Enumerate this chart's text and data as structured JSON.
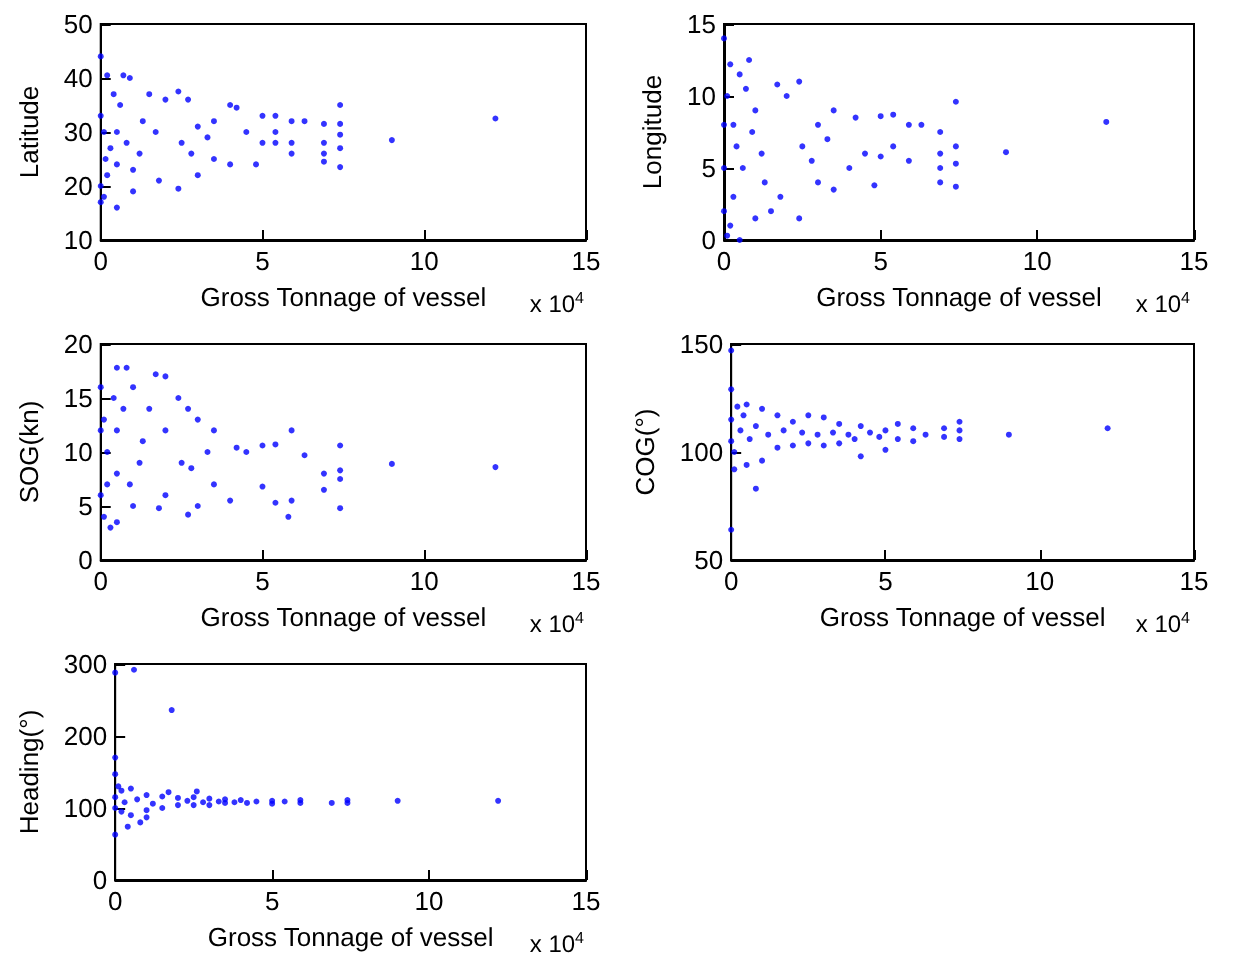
{
  "chart_data": [
    {
      "type": "scatter",
      "xlabel": "Gross Tonnage of vessel",
      "ylabel": "Latitude",
      "annotations": [
        "x 10$^{4}$"
      ],
      "color": "#0000ff",
      "marker": "circle",
      "xlim": [
        0,
        15
      ],
      "xticks": [
        0,
        5,
        10,
        15
      ],
      "ylim": [
        10,
        50
      ],
      "yticks": [
        10,
        20,
        30,
        40,
        50
      ],
      "x": [
        0,
        0.5,
        12.2,
        9,
        7.4,
        7.4,
        7.4,
        7.4,
        7.4,
        6.9,
        6.9,
        6.9,
        6.9,
        5.9,
        5.9,
        5.9,
        5.4,
        5.4,
        5.4,
        5,
        5,
        4.8,
        6.3,
        0,
        0.2,
        0.7,
        0.9,
        0,
        0,
        0.1,
        1,
        1.5,
        2,
        2.4,
        2.4,
        2.7,
        3,
        3,
        3.5,
        3.5,
        4,
        4,
        4.2,
        4.5,
        1.8,
        0.5,
        0.5,
        0.3,
        0.8,
        1.2,
        1.3,
        0.6,
        0.2,
        2.5,
        2.8,
        3.3,
        1.7,
        0.4,
        1,
        0.1,
        0.15
      ],
      "values": [
        44,
        16,
        32.5,
        28.5,
        35,
        23.5,
        27,
        29.5,
        31.5,
        24.5,
        26,
        28,
        31.5,
        32,
        28,
        26,
        33,
        30,
        28,
        33,
        28,
        24,
        32,
        17,
        40.5,
        40.5,
        40,
        33,
        20,
        18,
        19,
        37,
        36,
        37.5,
        19.5,
        36,
        31,
        22,
        32,
        25,
        35,
        24,
        34.5,
        30,
        21,
        24,
        30,
        27,
        28,
        26,
        32,
        35,
        22,
        28,
        26,
        29,
        30,
        37,
        23,
        30,
        25
      ]
    },
    {
      "type": "scatter",
      "xlabel": "Gross Tonnage of vessel",
      "ylabel": "Longitude",
      "annotations": [
        "x 10$^{4}$"
      ],
      "color": "#0000ff",
      "marker": "circle",
      "xlim": [
        0,
        15
      ],
      "xticks": [
        0,
        5,
        10,
        15
      ],
      "ylim": [
        0,
        15
      ],
      "yticks": [
        0,
        5,
        10,
        15
      ],
      "x": [
        0,
        0.2,
        0.8,
        0.5,
        0.1,
        12.2,
        9,
        7.4,
        7.4,
        7.4,
        7.4,
        6.9,
        6.9,
        6.9,
        6.9,
        5.9,
        5.9,
        5.4,
        5.4,
        5,
        5,
        4.8,
        6.3,
        4.5,
        4.2,
        4,
        3.5,
        3.5,
        3,
        3,
        2.4,
        2.4,
        2.5,
        2,
        1.7,
        1.5,
        1,
        1,
        0.7,
        0.3,
        0.3,
        0.6,
        0.4,
        0.2,
        0,
        0,
        0,
        1.2,
        1.3,
        2.8,
        3.3,
        0.9,
        0.1,
        0.5,
        1.8
      ],
      "values": [
        14,
        12.2,
        12.5,
        0,
        0.3,
        8.2,
        6.1,
        9.6,
        3.7,
        6.5,
        5.3,
        4,
        5,
        7.5,
        6,
        8,
        5.5,
        8.7,
        6.5,
        8.6,
        5.8,
        3.8,
        8,
        6,
        8.5,
        5,
        9,
        3.5,
        8,
        4,
        11,
        1.5,
        6.5,
        10,
        10.8,
        2,
        1.5,
        9,
        10.5,
        3,
        8,
        5,
        6.5,
        1,
        2,
        5,
        8,
        6,
        4,
        5.5,
        7,
        7.5,
        10,
        11.5,
        3
      ]
    },
    {
      "type": "scatter",
      "xlabel": "Gross Tonnage of vessel",
      "ylabel": "SOG(kn)",
      "annotations": [
        "x 10$^{4}$"
      ],
      "color": "#0000ff",
      "marker": "circle",
      "xlim": [
        0,
        15
      ],
      "xticks": [
        0,
        5,
        10,
        15
      ],
      "ylim": [
        0,
        20
      ],
      "yticks": [
        0,
        5,
        10,
        15,
        20
      ],
      "x": [
        0,
        0.3,
        0.5,
        0.8,
        1.7,
        2,
        2.4,
        0.1,
        0.5,
        12.2,
        9,
        7.4,
        7.4,
        7.4,
        7.4,
        6.9,
        6.9,
        6.3,
        5.9,
        5.9,
        5.8,
        5.4,
        5.4,
        5,
        5,
        4.5,
        4.2,
        4,
        3.5,
        3.5,
        3,
        3,
        2.7,
        2.7,
        2,
        2,
        1.8,
        1.5,
        1,
        1,
        0.5,
        0.5,
        0.7,
        0.2,
        0,
        0,
        1.2,
        1.3,
        2.5,
        3.3,
        2.8,
        0.9,
        0.4,
        0.1,
        0.2
      ],
      "values": [
        16,
        3,
        17.8,
        17.8,
        17.2,
        17,
        15,
        4,
        3.5,
        8.6,
        8.9,
        10.6,
        4.8,
        7.5,
        8.3,
        6.5,
        8,
        9.7,
        12,
        5.5,
        4,
        10.7,
        5.3,
        10.6,
        6.8,
        10,
        10.4,
        5.5,
        12,
        7,
        13,
        5,
        14,
        4.2,
        12,
        6,
        4.8,
        14,
        16,
        5,
        8,
        12,
        14,
        10,
        6,
        12,
        9,
        11,
        9,
        10,
        8.5,
        7,
        15,
        13,
        7
      ]
    },
    {
      "type": "scatter",
      "xlabel": "Gross Tonnage of vessel",
      "ylabel": "COG(°)",
      "annotations": [
        "x 10$^{4}$"
      ],
      "color": "#0000ff",
      "marker": "circle",
      "xlim": [
        0,
        15
      ],
      "xticks": [
        0,
        5,
        10,
        15
      ],
      "ylim": [
        50,
        150
      ],
      "yticks": [
        50,
        100,
        150
      ],
      "x": [
        0,
        0,
        0,
        0.8,
        0.1,
        12.2,
        9,
        7.4,
        7.4,
        7.4,
        6.9,
        6.9,
        6.3,
        5.9,
        5.9,
        5.4,
        5.4,
        5,
        5,
        4.8,
        4.5,
        4.2,
        4.2,
        4,
        3.5,
        3.5,
        3,
        3,
        2.5,
        2.5,
        2,
        2,
        1.5,
        1.5,
        1,
        1,
        0.5,
        0.5,
        0.2,
        0.3,
        0.6,
        0.8,
        1.2,
        1.7,
        2.3,
        2.8,
        3.3,
        3.8,
        0,
        0,
        0.1,
        0.4
      ],
      "values": [
        147,
        129,
        64,
        83,
        92,
        111,
        108,
        114,
        106,
        110,
        111,
        107,
        108,
        111,
        105,
        113,
        106,
        110,
        101,
        107,
        109,
        112,
        98,
        106,
        113,
        104,
        116,
        103,
        117,
        104,
        114,
        103,
        117,
        102,
        120,
        96,
        122,
        94,
        121,
        110,
        106,
        112,
        108,
        110,
        109,
        108,
        109,
        108,
        105,
        115,
        100,
        117
      ]
    },
    {
      "type": "scatter",
      "xlabel": "Gross Tonnage of vessel",
      "ylabel": "Heading(°)",
      "annotations": [
        "x 10$^{4}$"
      ],
      "color": "#0000ff",
      "marker": "circle",
      "xlim": [
        0,
        15
      ],
      "xticks": [
        0,
        5,
        10,
        15
      ],
      "ylim": [
        0,
        300
      ],
      "yticks": [
        0,
        100,
        200,
        300
      ],
      "x": [
        0,
        0.6,
        1.8,
        0,
        0,
        0,
        0.4,
        0.8,
        1,
        1.7,
        2.6,
        12.2,
        9,
        7.4,
        7.4,
        6.9,
        5.9,
        5.9,
        5.4,
        5,
        5,
        4.5,
        4.2,
        4,
        3.5,
        3.5,
        3,
        3,
        2.5,
        2.5,
        2,
        2,
        1.5,
        1.5,
        1,
        1,
        0.5,
        0.5,
        0.2,
        0.2,
        0,
        0,
        0.3,
        0.7,
        1.2,
        2.3,
        2.8,
        3.3,
        3.8,
        0.1
      ],
      "values": [
        288,
        292,
        236,
        170,
        147,
        63,
        74,
        80,
        87,
        122,
        123,
        110,
        110,
        107,
        111,
        107,
        111,
        107,
        109,
        106,
        110,
        109,
        107,
        111,
        107,
        112,
        104,
        113,
        104,
        115,
        104,
        114,
        100,
        116,
        97,
        118,
        90,
        127,
        95,
        124,
        100,
        115,
        108,
        112,
        106,
        110,
        108,
        109,
        108,
        130
      ]
    }
  ]
}
